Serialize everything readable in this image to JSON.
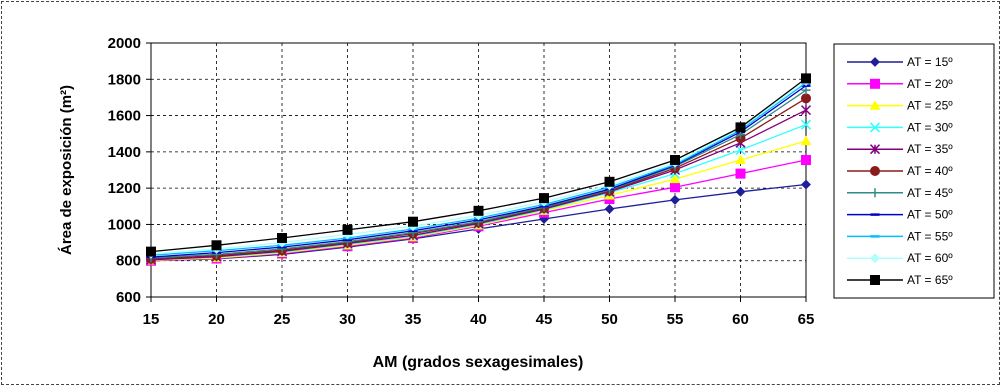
{
  "chart_data": {
    "type": "line",
    "xlabel": "AM (grados sexagesimales)",
    "ylabel": "Área de exposición (m²)",
    "x": [
      15,
      20,
      25,
      30,
      35,
      40,
      45,
      50,
      55,
      60,
      65
    ],
    "xlim": [
      15,
      65
    ],
    "ylim": [
      600,
      2000
    ],
    "xticks": [
      15,
      20,
      25,
      30,
      35,
      40,
      45,
      50,
      55,
      60,
      65
    ],
    "yticks": [
      600,
      800,
      1000,
      1200,
      1400,
      1600,
      1800,
      2000
    ],
    "grid": true,
    "grid_style": "dashed",
    "legend_position": "right",
    "series": [
      {
        "name": "AT = 15º",
        "color": "#1f1f99",
        "marker": "diamond",
        "values": [
          800,
          810,
          835,
          875,
          920,
          975,
          1030,
          1085,
          1135,
          1180,
          1220
        ]
      },
      {
        "name": "AT = 20º",
        "color": "#ff00ff",
        "marker": "square",
        "values": [
          800,
          812,
          840,
          880,
          925,
          990,
          1065,
          1140,
          1205,
          1280,
          1355
        ]
      },
      {
        "name": "AT = 25º",
        "color": "#ffff00",
        "marker": "triangle",
        "values": [
          802,
          815,
          843,
          885,
          930,
          995,
          1075,
          1160,
          1250,
          1355,
          1460
        ]
      },
      {
        "name": "AT = 30º",
        "color": "#33ffff",
        "marker": "x",
        "values": [
          805,
          820,
          848,
          890,
          935,
          1000,
          1080,
          1175,
          1280,
          1410,
          1550
        ]
      },
      {
        "name": "AT = 35º",
        "color": "#800080",
        "marker": "star",
        "values": [
          805,
          822,
          852,
          895,
          940,
          1005,
          1085,
          1180,
          1300,
          1450,
          1630
        ]
      },
      {
        "name": "AT = 40º",
        "color": "#8b1a1a",
        "marker": "circle",
        "values": [
          810,
          828,
          858,
          900,
          950,
          1010,
          1090,
          1185,
          1310,
          1475,
          1695
        ]
      },
      {
        "name": "AT = 45º",
        "color": "#2e8b87",
        "marker": "plus",
        "values": [
          815,
          835,
          865,
          905,
          955,
          1015,
          1095,
          1190,
          1320,
          1495,
          1740
        ]
      },
      {
        "name": "AT = 50º",
        "color": "#0000cc",
        "marker": "dash",
        "values": [
          820,
          845,
          875,
          915,
          965,
          1025,
          1100,
          1195,
          1325,
          1510,
          1765
        ]
      },
      {
        "name": "AT = 55º",
        "color": "#00bfff",
        "marker": "dash",
        "values": [
          830,
          855,
          885,
          925,
          975,
          1035,
          1110,
          1205,
          1330,
          1520,
          1780
        ]
      },
      {
        "name": "AT = 60º",
        "color": "#b0ffff",
        "marker": "diamond",
        "values": [
          838,
          865,
          900,
          945,
          990,
          1050,
          1125,
          1215,
          1340,
          1530,
          1790
        ]
      },
      {
        "name": "AT = 65º",
        "color": "#000000",
        "marker": "square",
        "values": [
          850,
          885,
          925,
          970,
          1015,
          1075,
          1145,
          1235,
          1355,
          1535,
          1805
        ]
      }
    ]
  }
}
